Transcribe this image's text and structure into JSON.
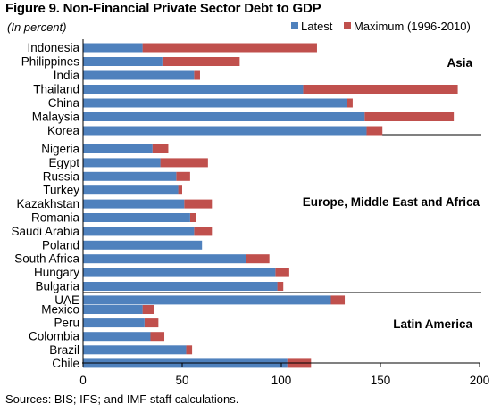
{
  "chart_data": {
    "type": "bar",
    "orientation": "horizontal",
    "stacked": true,
    "title": "Figure 9. Non-Financial Private Sector Debt to GDP",
    "subtitle": "(In percent)",
    "source": "Sources: BIS; IFS; and IMF staff calculations.",
    "xlim": [
      0,
      200
    ],
    "xticks": [
      "0",
      "50",
      "100",
      "150",
      "200"
    ],
    "legend": {
      "placement": "top-right",
      "entries": [
        {
          "name": "Latest",
          "color": "#4f81bd"
        },
        {
          "name": "Maximum (1996-2010)",
          "color": "#c0504d"
        }
      ]
    },
    "groups": [
      {
        "name": "Asia",
        "categories": [
          "Indonesia",
          "Philippines",
          "India",
          "Thailand",
          "China",
          "Malaysia",
          "Korea"
        ],
        "latest": [
          30,
          40,
          56,
          111,
          133,
          142,
          143
        ],
        "maximum": [
          118,
          79,
          59,
          189,
          136,
          187,
          151
        ]
      },
      {
        "name": "Europe, Middle East and Africa",
        "categories": [
          "Nigeria",
          "Egypt",
          "Russia",
          "Turkey",
          "Kazakhstan",
          "Romania",
          "Saudi Arabia",
          "Poland",
          "South Africa",
          "Hungary",
          "Bulgaria",
          "UAE"
        ],
        "latest": [
          35,
          39,
          47,
          48,
          51,
          54,
          56,
          60,
          82,
          97,
          98,
          125
        ],
        "maximum": [
          43,
          63,
          54,
          50,
          65,
          57,
          65,
          60,
          94,
          104,
          101,
          132
        ]
      },
      {
        "name": "Latin America",
        "categories": [
          "Mexico",
          "Peru",
          "Colombia",
          "Brazil",
          "Chile"
        ],
        "latest": [
          30,
          31,
          34,
          52,
          103
        ],
        "maximum": [
          36,
          38,
          41,
          55,
          115
        ]
      }
    ],
    "colors": {
      "latest": "#4f81bd",
      "maximum": "#c0504d",
      "axis": "#000000"
    }
  }
}
